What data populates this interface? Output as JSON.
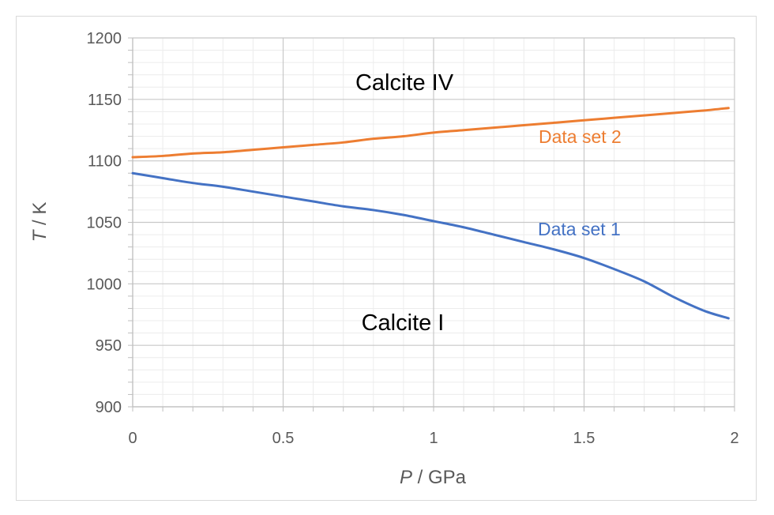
{
  "chart_data": {
    "type": "line",
    "xlabel_var": "P",
    "xlabel_unit": " / GPa",
    "ylabel_var": "T",
    "ylabel_unit": " / K",
    "xlim": [
      0,
      2
    ],
    "ylim": [
      900,
      1200
    ],
    "x_ticks": [
      0,
      0.5,
      1,
      1.5,
      2
    ],
    "x_tick_labels": [
      "0",
      "0.5",
      "1",
      "1.5",
      "2"
    ],
    "y_ticks": [
      900,
      950,
      1000,
      1050,
      1100,
      1150,
      1200
    ],
    "y_tick_labels": [
      "900",
      "950",
      "1000",
      "1050",
      "1100",
      "1150",
      "1200"
    ],
    "grid": true,
    "series": [
      {
        "name": "Data set 1",
        "color": "#4472C4",
        "x": [
          0,
          0.1,
          0.2,
          0.3,
          0.4,
          0.5,
          0.6,
          0.7,
          0.8,
          0.9,
          1.0,
          1.1,
          1.2,
          1.3,
          1.4,
          1.5,
          1.6,
          1.7,
          1.8,
          1.9,
          1.98
        ],
        "y": [
          1090,
          1086,
          1082,
          1079,
          1075,
          1071,
          1067,
          1063,
          1060,
          1056,
          1051,
          1046,
          1040,
          1034,
          1028,
          1021,
          1012,
          1002,
          989,
          978,
          972
        ]
      },
      {
        "name": "Data set 2",
        "color": "#ED7D31",
        "x": [
          0,
          0.1,
          0.2,
          0.3,
          0.4,
          0.5,
          0.6,
          0.7,
          0.8,
          0.9,
          1.0,
          1.1,
          1.2,
          1.3,
          1.4,
          1.5,
          1.6,
          1.7,
          1.8,
          1.9,
          1.98
        ],
        "y": [
          1103,
          1104,
          1106,
          1107,
          1109,
          1111,
          1113,
          1115,
          1118,
          1120,
          1123,
          1125,
          1127,
          1129,
          1131,
          1133,
          1135,
          1137,
          1139,
          1141,
          1143
        ]
      }
    ],
    "annotations": [
      {
        "text": "Calcite IV",
        "role": "region"
      },
      {
        "text": "Calcite I",
        "role": "region"
      }
    ]
  }
}
